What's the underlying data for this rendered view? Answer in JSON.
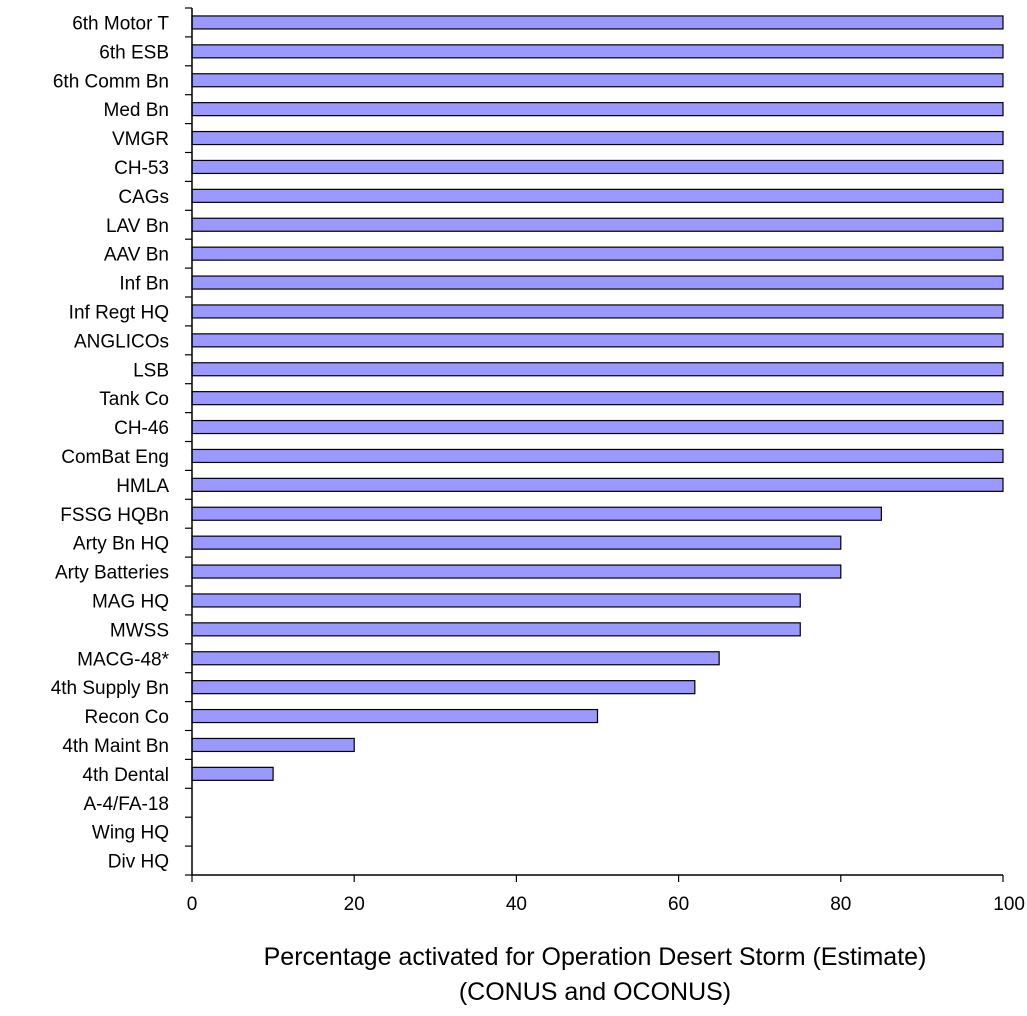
{
  "chart_data": {
    "type": "bar",
    "orientation": "horizontal",
    "categories": [
      "6th Motor T",
      "6th ESB",
      "6th Comm Bn",
      "Med Bn",
      "VMGR",
      "CH-53",
      "CAGs",
      "LAV Bn",
      "AAV Bn",
      "Inf Bn",
      "Inf Regt HQ",
      "ANGLICOs",
      "LSB",
      "Tank Co",
      "CH-46",
      "ComBat Eng",
      "HMLA",
      "FSSG HQBn",
      "Arty Bn HQ",
      "Arty Batteries",
      "MAG HQ",
      "MWSS",
      "MACG-48*",
      "4th Supply Bn",
      "Recon Co",
      "4th Maint Bn",
      "4th Dental",
      "A-4/FA-18",
      "Wing HQ",
      "Div HQ"
    ],
    "values": [
      100,
      100,
      100,
      100,
      100,
      100,
      100,
      100,
      100,
      100,
      100,
      100,
      100,
      100,
      100,
      100,
      100,
      85,
      80,
      80,
      75,
      75,
      65,
      62,
      50,
      20,
      10,
      0,
      0,
      0
    ],
    "xlim": [
      0,
      100
    ],
    "xticks": [
      0,
      20,
      40,
      60,
      80,
      100
    ],
    "xlabel": "Percentage activated for Operation Desert Storm (Estimate)",
    "xlabel2": "(CONUS and OCONUS)",
    "bar_color": "#9999ff",
    "bar_edge_color": "#000000",
    "grid": false,
    "legend": "none"
  }
}
